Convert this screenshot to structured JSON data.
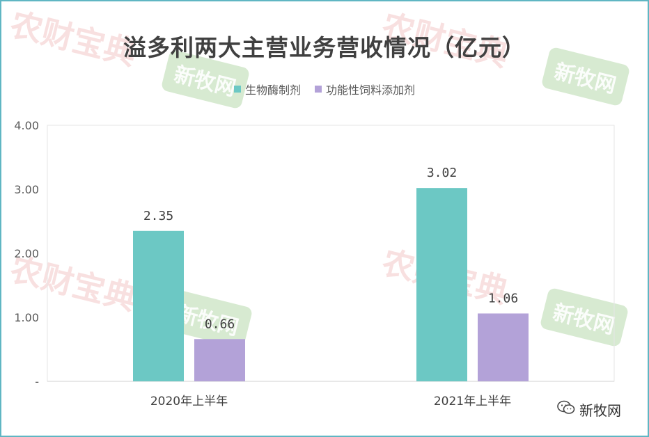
{
  "chart_data": {
    "type": "bar",
    "title": "溢多利两大主营业务营收情况（亿元）",
    "categories": [
      "2020年上半年",
      "2021年上半年"
    ],
    "series": [
      {
        "name": "生物酶制剂",
        "values": [
          2.35,
          3.02
        ],
        "labels": [
          "2.35",
          "3.02"
        ],
        "color": "#6cc8c4"
      },
      {
        "name": "功能性饲料添加剂",
        "values": [
          0.66,
          1.06
        ],
        "labels": [
          "0.66",
          "1.06"
        ],
        "color": "#b3a2d8"
      }
    ],
    "y_ticks": [
      "4.00",
      "3.00",
      "2.00",
      "1.00",
      "-"
    ],
    "y_tick_values": [
      4,
      3,
      2,
      1,
      0
    ],
    "ylim": [
      0,
      4
    ],
    "legend_position": "top-center",
    "grid": false
  },
  "watermarks": {
    "red_text": "农财宝典",
    "green_text": "新牧网"
  },
  "brand": {
    "icon": "wechat-icon",
    "text": "新牧网"
  }
}
